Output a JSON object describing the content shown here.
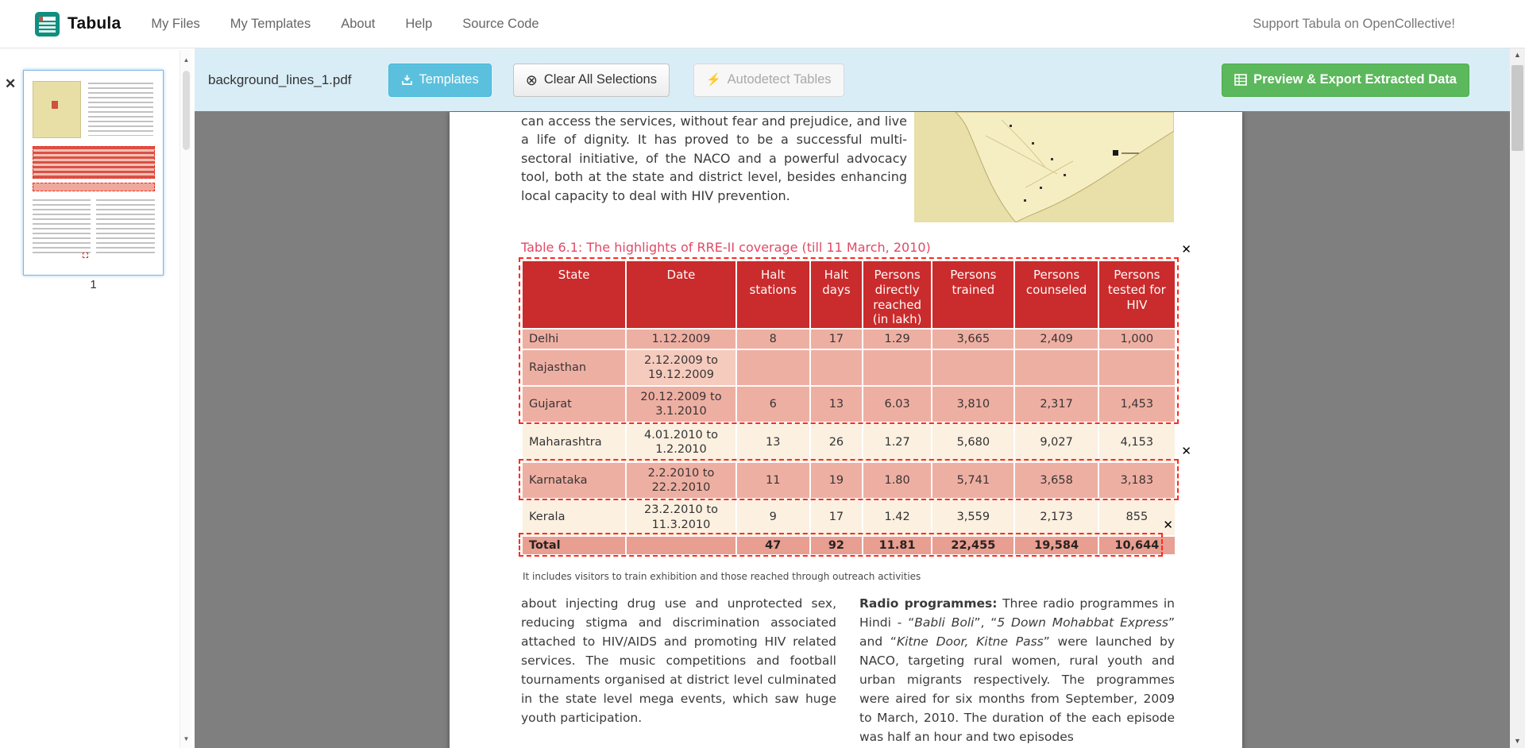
{
  "navbar": {
    "brand": "Tabula",
    "items": [
      "My Files",
      "My Templates",
      "About",
      "Help",
      "Source Code"
    ],
    "right_link": "Support Tabula on OpenCollective!"
  },
  "toolbar": {
    "filename": "background_lines_1.pdf",
    "templates_label": "Templates",
    "clear_label": "Clear All Selections",
    "autodetect_label": "Autodetect Tables",
    "export_label": "Preview & Export Extracted Data"
  },
  "sidebar": {
    "page_label": "1"
  },
  "icons": {
    "close": "✕",
    "clear_circle": "⊗",
    "lightning": "⚡",
    "scroll_up": "▲",
    "scroll_down": "▼"
  },
  "colors": {
    "toolbar_bg": "#d9edf7",
    "info_button": "#5bc0de",
    "success_button": "#5cb85c",
    "table_header_red": "#c92a2c",
    "row_pink": "#eeb2a7",
    "row_cream": "#fcf0e1",
    "selection_red": "#ff2a1f"
  },
  "pdf": {
    "intro_paragraph": "can access the services, without fear and prejudice, and live a life of dignity. It has proved to be a successful multi-sectoral initiative, of the NACO and a powerful advocacy tool, both at the state and district level, besides enhancing local capacity to deal with HIV prevention.",
    "table_title": "Table 6.1: The highlights of RRE-II coverage (till 11 March, 2010)",
    "table": {
      "headers": [
        "State",
        "Date",
        "Halt stations",
        "Halt days",
        "Persons directly reached (in lakh)",
        "Persons trained",
        "Persons counseled",
        "Persons tested for HIV"
      ],
      "rows": [
        [
          "Delhi",
          "1.12.2009",
          "8",
          "17",
          "1.29",
          "3,665",
          "2,409",
          "1,000"
        ],
        [
          "Rajasthan",
          "2.12.2009 to 19.12.2009",
          "",
          "",
          "",
          "",
          "",
          ""
        ],
        [
          "Gujarat",
          "20.12.2009 to 3.1.2010",
          "6",
          "13",
          "6.03",
          "3,810",
          "2,317",
          "1,453"
        ],
        [
          "Maharashtra",
          "4.01.2010 to 1.2.2010",
          "13",
          "26",
          "1.27",
          "5,680",
          "9,027",
          "4,153"
        ],
        [
          "Karnataka",
          "2.2.2010 to 22.2.2010",
          "11",
          "19",
          "1.80",
          "5,741",
          "3,658",
          "3,183"
        ],
        [
          "Kerala",
          "23.2.2010 to 11.3.2010",
          "9",
          "17",
          "1.42",
          "3,559",
          "2,173",
          "855"
        ],
        [
          "Total",
          "",
          "47",
          "92",
          "11.81",
          "22,455",
          "19,584",
          "10,644"
        ]
      ]
    },
    "footnote": "It includes visitors to train exhibition and those reached through outreach activities",
    "left_paragraph": "about injecting drug use and unprotected sex, reducing stigma and discrimination associated attached to HIV/AIDS and promoting HIV related services. The music competitions and football tournaments organised at district level culminated in the state level mega events, which saw huge youth participation.",
    "right_paragraph": [
      {
        "text": "Radio programmes:",
        "bold": true
      },
      {
        "text": " Three radio programmes in Hindi - “"
      },
      {
        "text": "Babli Boli",
        "italic": true
      },
      {
        "text": "”, “"
      },
      {
        "text": "5 Down Mohabbat Express",
        "italic": true
      },
      {
        "text": "” and “"
      },
      {
        "text": "Kitne Door, Kitne Pass",
        "italic": true
      },
      {
        "text": "” were launched by NACO, targeting rural women, rural youth and urban migrants respectively. The programmes were aired for six months from September, 2009 to March, 2010. The duration of the each episode was half an hour and two episodes"
      }
    ]
  }
}
